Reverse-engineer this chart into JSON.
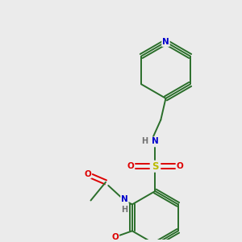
{
  "bg_color": "#ebebeb",
  "bond_color": "#2a6e2a",
  "atom_colors": {
    "N": "#0000cc",
    "O": "#dd0000",
    "S": "#bbbb00",
    "H": "#707070",
    "C": "#2a6e2a"
  },
  "lw": 1.4,
  "fontsize": 7.5
}
